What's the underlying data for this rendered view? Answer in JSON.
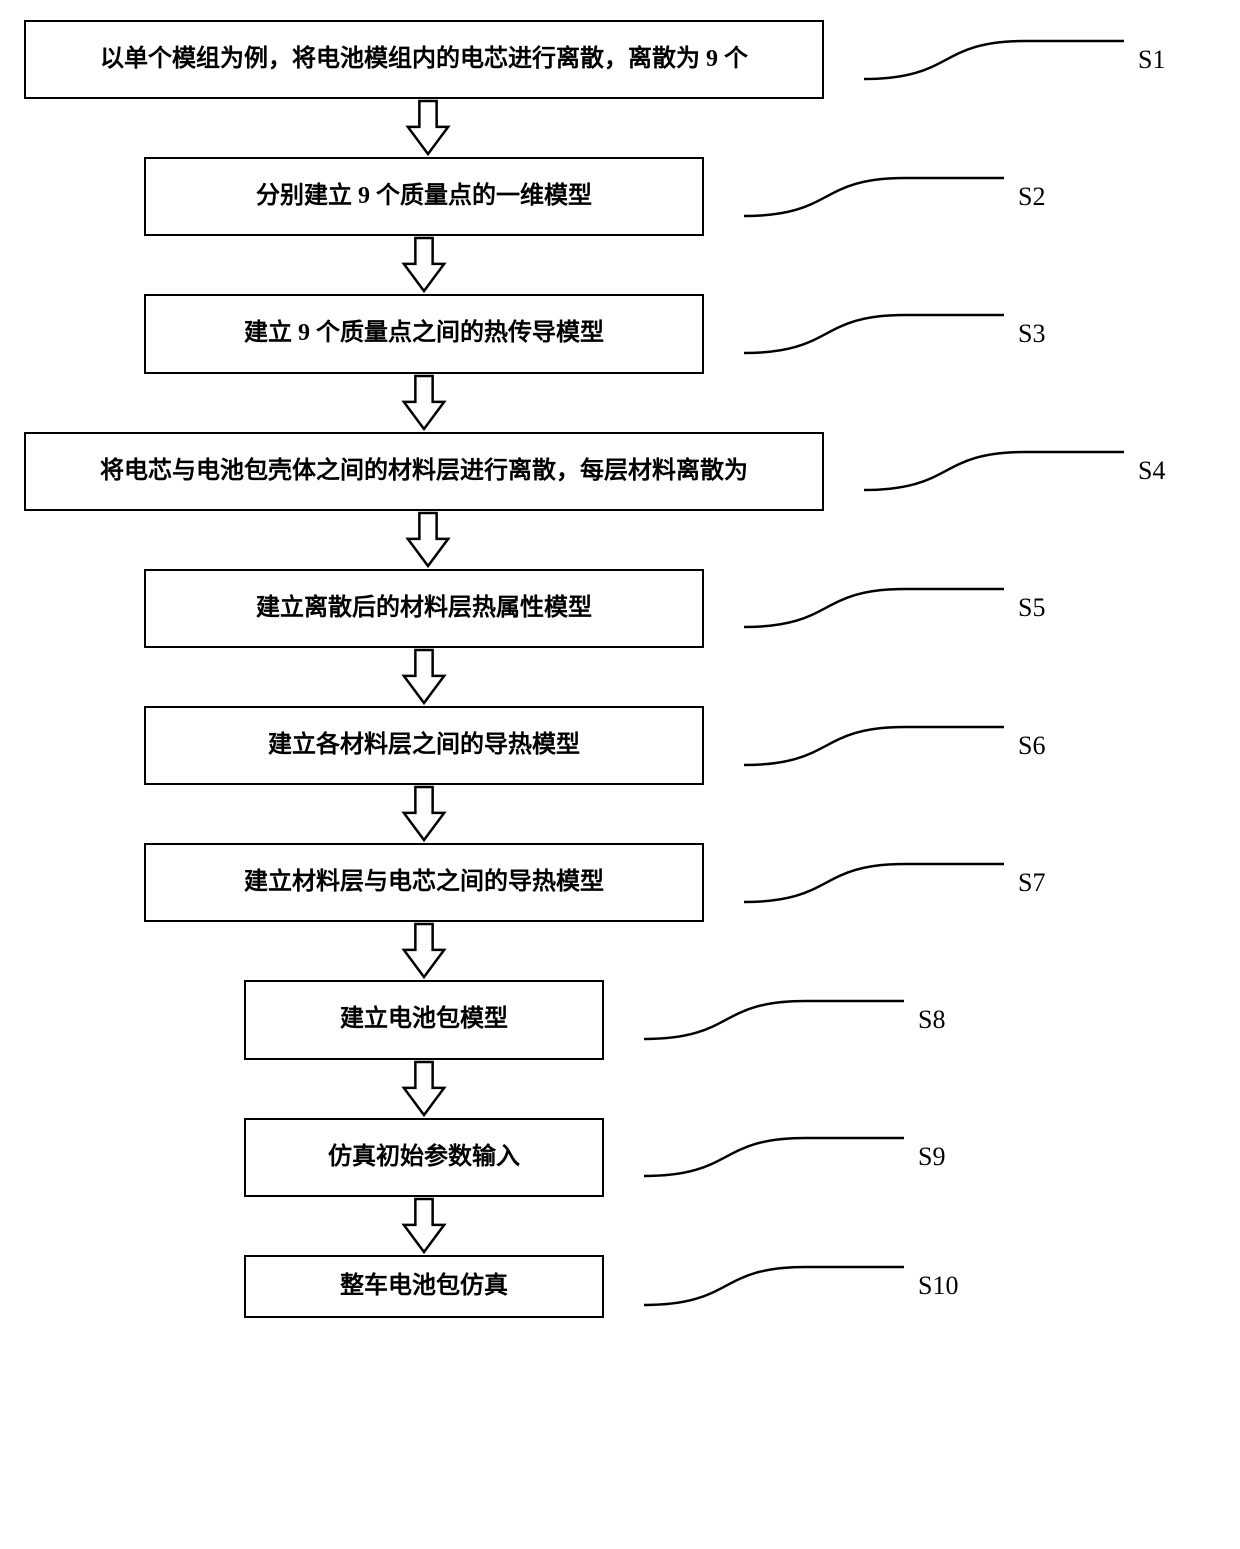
{
  "flowchart": {
    "type": "flowchart",
    "direction": "top-to-bottom",
    "box_border_color": "#000000",
    "box_border_width": 2.5,
    "box_fill": "#ffffff",
    "box_text_color": "#000000",
    "box_font_size_pt": 18,
    "box_font_weight": "bold",
    "label_font_family": "Times New Roman",
    "label_font_size_pt": 20,
    "connector_curve_stroke": "#000000",
    "connector_curve_width": 2.5,
    "arrow_stroke": "#000000",
    "arrow_fill": "#ffffff",
    "arrow_stroke_width": 2.5,
    "background_color": "#ffffff",
    "steps": [
      {
        "id": "S1",
        "text": "以单个模组为例，将电池模组内的电芯进行离散，离散为 9 个",
        "width": "wide"
      },
      {
        "id": "S2",
        "text": "分别建立 9 个质量点的一维模型",
        "width": "medium"
      },
      {
        "id": "S3",
        "text": "建立 9 个质量点之间的热传导模型",
        "width": "medium"
      },
      {
        "id": "S4",
        "text": "将电芯与电池包壳体之间的材料层进行离散，每层材料离散为",
        "width": "wide"
      },
      {
        "id": "S5",
        "text": "建立离散后的材料层热属性模型",
        "width": "medium"
      },
      {
        "id": "S6",
        "text": "建立各材料层之间的导热模型",
        "width": "medium"
      },
      {
        "id": "S7",
        "text": "建立材料层与电芯之间的导热模型",
        "width": "medium"
      },
      {
        "id": "S8",
        "text": "建立电池包模型",
        "width": "narrow"
      },
      {
        "id": "S9",
        "text": "仿真初始参数输入",
        "width": "narrow"
      },
      {
        "id": "S10",
        "text": "整车电池包仿真",
        "width": "narrow",
        "last": true
      }
    ]
  }
}
